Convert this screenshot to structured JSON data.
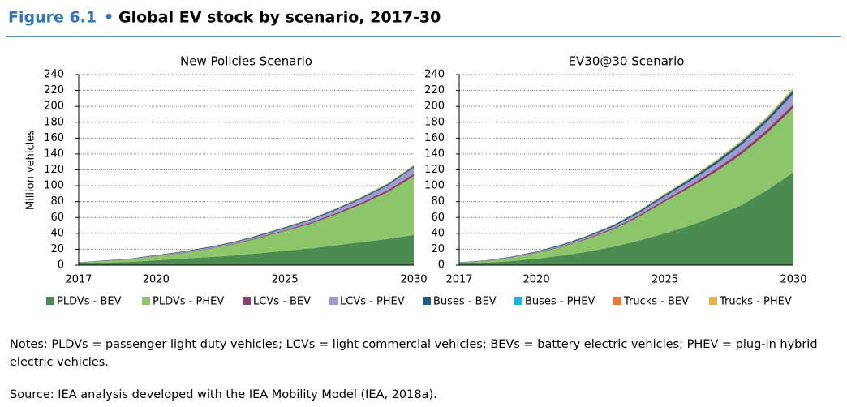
{
  "header": {
    "figure": "Figure 6.1",
    "bullet": "•",
    "title": "Global EV stock by scenario, 2017-30"
  },
  "chart_data": [
    {
      "type": "area",
      "title": "New Policies Scenario",
      "y_label": "Million vehicles",
      "x": [
        2017,
        2018,
        2019,
        2020,
        2021,
        2022,
        2023,
        2024,
        2025,
        2026,
        2027,
        2028,
        2029,
        2030
      ],
      "xlim": [
        2017,
        2030
      ],
      "xticks": [
        2017,
        2020,
        2025,
        2030
      ],
      "ylim": [
        0,
        240
      ],
      "yticks": [
        0,
        20,
        40,
        60,
        80,
        100,
        120,
        140,
        160,
        180,
        200,
        220,
        240
      ],
      "grid": true,
      "series": [
        {
          "name": "PLDVs - BEV",
          "color": "#4b8b52",
          "values": [
            2,
            3,
            4,
            6,
            8,
            10,
            12,
            15,
            18,
            21,
            25,
            29,
            33,
            38
          ]
        },
        {
          "name": "PLDVs - PHEV",
          "color": "#8dc66a",
          "values": [
            1,
            2,
            3,
            5,
            7,
            10,
            14,
            19,
            25,
            31,
            39,
            48,
            59,
            74
          ]
        },
        {
          "name": "LCVs - BEV",
          "color": "#8e3f6e",
          "values": [
            0.1,
            0.2,
            0.3,
            0.4,
            0.5,
            0.6,
            0.8,
            1,
            1.2,
            1.5,
            1.8,
            2.2,
            2.6,
            3
          ]
        },
        {
          "name": "LCVs - PHEV",
          "color": "#9d9ccc",
          "values": [
            0.1,
            0.2,
            0.3,
            0.5,
            0.7,
            1,
            1.3,
            1.7,
            2.2,
            3,
            3.8,
            4.8,
            6,
            8
          ]
        },
        {
          "name": "Buses - BEV",
          "color": "#1f5c80",
          "values": [
            0.4,
            0.5,
            0.6,
            0.7,
            0.8,
            0.9,
            1,
            1.1,
            1.2,
            1.3,
            1.4,
            1.5,
            1.6,
            1.8
          ]
        },
        {
          "name": "Buses - PHEV",
          "color": "#1fb5d8",
          "values": [
            0.05,
            0.05,
            0.06,
            0.07,
            0.08,
            0.09,
            0.1,
            0.11,
            0.12,
            0.13,
            0.14,
            0.16,
            0.18,
            0.2
          ]
        },
        {
          "name": "Trucks - BEV",
          "color": "#e57a3c",
          "values": [
            0.01,
            0.01,
            0.02,
            0.03,
            0.04,
            0.05,
            0.07,
            0.09,
            0.11,
            0.14,
            0.17,
            0.2,
            0.25,
            0.3
          ]
        },
        {
          "name": "Trucks - PHEV",
          "color": "#e4b44a",
          "values": [
            0.1,
            0.1,
            0.15,
            0.2,
            0.25,
            0.3,
            0.35,
            0.4,
            0.45,
            0.5,
            0.6,
            0.7,
            0.8,
            1
          ]
        }
      ]
    },
    {
      "type": "area",
      "title": "EV30@30 Scenario",
      "x": [
        2017,
        2018,
        2019,
        2020,
        2021,
        2022,
        2023,
        2024,
        2025,
        2026,
        2027,
        2028,
        2029,
        2030
      ],
      "xlim": [
        2017,
        2030
      ],
      "xticks": [
        2017,
        2020,
        2025,
        2030
      ],
      "ylim": [
        0,
        240
      ],
      "yticks": [
        0,
        20,
        40,
        60,
        80,
        100,
        120,
        140,
        160,
        180,
        200,
        220,
        240
      ],
      "grid": true,
      "series": [
        {
          "values": [
            2,
            3,
            5,
            8,
            12,
            17,
            23,
            31,
            40,
            50,
            62,
            76,
            95,
            117
          ]
        },
        {
          "values": [
            1,
            2,
            4,
            7,
            11,
            16,
            22,
            30,
            40,
            48,
            56,
            64,
            72,
            81
          ]
        },
        {
          "values": [
            0.1,
            0.2,
            0.3,
            0.5,
            0.8,
            1.1,
            1.5,
            2,
            2.5,
            3,
            3.5,
            4,
            4.5,
            5
          ]
        },
        {
          "values": [
            0.1,
            0.2,
            0.4,
            0.7,
            1,
            1.5,
            2,
            3,
            4,
            5,
            6,
            8,
            10,
            13
          ]
        },
        {
          "values": [
            0.4,
            0.5,
            0.7,
            0.9,
            1.1,
            1.4,
            1.7,
            2,
            2.4,
            2.8,
            3.2,
            3.6,
            4,
            4.5
          ]
        },
        {
          "values": [
            0.05,
            0.06,
            0.08,
            0.1,
            0.12,
            0.15,
            0.18,
            0.22,
            0.26,
            0.3,
            0.36,
            0.42,
            0.5,
            0.6
          ]
        },
        {
          "values": [
            0.01,
            0.02,
            0.03,
            0.04,
            0.06,
            0.08,
            0.1,
            0.13,
            0.16,
            0.2,
            0.25,
            0.3,
            0.4,
            0.5
          ]
        },
        {
          "values": [
            0.1,
            0.15,
            0.2,
            0.3,
            0.4,
            0.5,
            0.6,
            0.75,
            0.9,
            1.1,
            1.3,
            1.5,
            1.7,
            2
          ]
        }
      ]
    }
  ],
  "notes": "Notes: PLDVs = passenger light duty vehicles; LCVs = light commercial vehicles; BEVs = battery electric vehicles; PHEV = plug-in hybrid electric vehicles.",
  "source": "Source: IEA analysis developed with the IEA Mobility Model (IEA, 2018a)."
}
